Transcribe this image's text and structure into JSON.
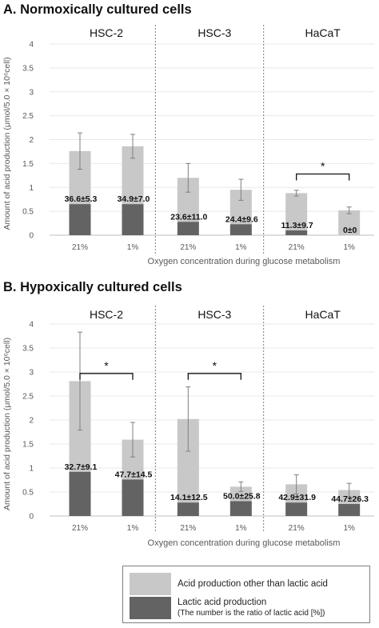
{
  "colors": {
    "lactic": "#636363",
    "other": "#c8c8c8",
    "axis": "#bfbfbf",
    "grid": "#e8e8e8",
    "error": "#7f7f7f",
    "text": "#595959",
    "separator": "#7f7f7f"
  },
  "legend": {
    "other_label": "Acid production other than lactic acid",
    "lactic_label": "Lactic acid production",
    "lactic_sublabel": "(The number is the ratio of lactic acid [%])"
  },
  "chart_data": [
    {
      "type": "bar",
      "stacked": true,
      "title": "A. Normoxically cultured cells",
      "ylabel": "Amount of acid production (μmol/5.0 × 10⁶cell)",
      "xlabel": "Oxygen concentration during glucose metabolism",
      "ylim": [
        0,
        4
      ],
      "yticks": [
        "0",
        "0.5",
        "1",
        "1.5",
        "2",
        "2.5",
        "3",
        "3.5",
        "4"
      ],
      "grid": true,
      "groups": [
        {
          "name": "HSC-2",
          "bars": [
            {
              "category": "21%",
              "lactic": 0.65,
              "total": 1.76,
              "error": 0.38,
              "label": "36.6±5.3"
            },
            {
              "category": "1%",
              "lactic": 0.65,
              "total": 1.86,
              "error": 0.25,
              "label": "34.9±7.0"
            }
          ]
        },
        {
          "name": "HSC-3",
          "bars": [
            {
              "category": "21%",
              "lactic": 0.28,
              "total": 1.2,
              "error": 0.3,
              "label": "23.6±11.0"
            },
            {
              "category": "1%",
              "lactic": 0.23,
              "total": 0.95,
              "error": 0.22,
              "label": "24.4±9.6"
            }
          ]
        },
        {
          "name": "HaCaT",
          "bars": [
            {
              "category": "21%",
              "lactic": 0.1,
              "total": 0.88,
              "error": 0.06,
              "label": "11.3±9.7"
            },
            {
              "category": "1%",
              "lactic": 0.0,
              "total": 0.52,
              "error": 0.07,
              "label": "0±0"
            }
          ],
          "significance": {
            "label": "*",
            "y": 1.28
          }
        }
      ]
    },
    {
      "type": "bar",
      "stacked": true,
      "title": "B. Hypoxically cultured cells",
      "ylabel": "Amount of acid production (μmol/5.0 × 10⁶cell)",
      "xlabel": "Oxygen concentration during glucose metabolism",
      "ylim": [
        0,
        4
      ],
      "yticks": [
        "0",
        "0.5",
        "1",
        "1.5",
        "2",
        "2.5",
        "3",
        "3.5",
        "4"
      ],
      "grid": true,
      "groups": [
        {
          "name": "HSC-2",
          "bars": [
            {
              "category": "21%",
              "lactic": 0.92,
              "total": 2.81,
              "error": 1.02,
              "label": "32.7±9.1"
            },
            {
              "category": "1%",
              "lactic": 0.76,
              "total": 1.59,
              "error": 0.36,
              "label": "47.7±14.5"
            }
          ],
          "significance": {
            "label": "*",
            "y": 2.97
          }
        },
        {
          "name": "HSC-3",
          "bars": [
            {
              "category": "21%",
              "lactic": 0.28,
              "total": 2.02,
              "error": 0.67,
              "label": "14.1±12.5"
            },
            {
              "category": "1%",
              "lactic": 0.31,
              "total": 0.61,
              "error": 0.1,
              "label": "50.0±25.8"
            }
          ],
          "significance": {
            "label": "*",
            "y": 2.97
          }
        },
        {
          "name": "HaCaT",
          "bars": [
            {
              "category": "21%",
              "lactic": 0.28,
              "total": 0.66,
              "error": 0.2,
              "label": "42.9±31.9"
            },
            {
              "category": "1%",
              "lactic": 0.25,
              "total": 0.54,
              "error": 0.14,
              "label": "44.7±26.3"
            }
          ]
        }
      ]
    }
  ]
}
